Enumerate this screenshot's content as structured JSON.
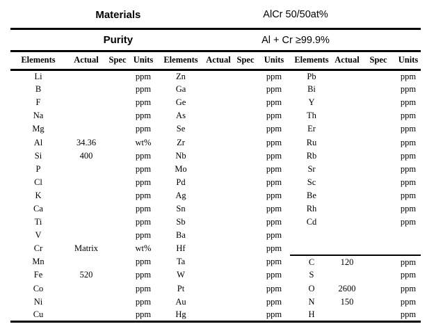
{
  "colors": {
    "background": "#ffffff",
    "text": "#000000",
    "rule": "#000000"
  },
  "title_rows": [
    {
      "label": "Materials",
      "value": "AlCr 50/50at%"
    },
    {
      "label": "Purity",
      "value": "Al + Cr ≥99.9%"
    }
  ],
  "columns": [
    "Elements",
    "Actual",
    "Spec",
    "Units"
  ],
  "groups": [
    {
      "rows": [
        {
          "element": "Li",
          "actual": "",
          "spec": "",
          "units": "ppm"
        },
        {
          "element": "B",
          "actual": "",
          "spec": "",
          "units": "ppm"
        },
        {
          "element": "F",
          "actual": "",
          "spec": "",
          "units": "ppm"
        },
        {
          "element": "Na",
          "actual": "",
          "spec": "",
          "units": "ppm"
        },
        {
          "element": "Mg",
          "actual": "",
          "spec": "",
          "units": "ppm"
        },
        {
          "element": "Al",
          "actual": "34.36",
          "spec": "",
          "units": "wt%"
        },
        {
          "element": "Si",
          "actual": "400",
          "spec": "",
          "units": "ppm"
        },
        {
          "element": "P",
          "actual": "",
          "spec": "",
          "units": "ppm"
        },
        {
          "element": "Cl",
          "actual": "",
          "spec": "",
          "units": "ppm"
        },
        {
          "element": "K",
          "actual": "",
          "spec": "",
          "units": "ppm"
        },
        {
          "element": "Ca",
          "actual": "",
          "spec": "",
          "units": "ppm"
        },
        {
          "element": "Ti",
          "actual": "",
          "spec": "",
          "units": "ppm"
        },
        {
          "element": "V",
          "actual": "",
          "spec": "",
          "units": "ppm"
        },
        {
          "element": "Cr",
          "actual": "Matrix",
          "spec": "",
          "units": "wt%"
        },
        {
          "element": "Mn",
          "actual": "",
          "spec": "",
          "units": "ppm"
        },
        {
          "element": "Fe",
          "actual": "520",
          "spec": "",
          "units": "ppm"
        },
        {
          "element": "Co",
          "actual": "",
          "spec": "",
          "units": "ppm"
        },
        {
          "element": "Ni",
          "actual": "",
          "spec": "",
          "units": "ppm"
        },
        {
          "element": "Cu",
          "actual": "",
          "spec": "",
          "units": "ppm"
        }
      ]
    },
    {
      "rows": [
        {
          "element": "Zn",
          "actual": "",
          "spec": "",
          "units": "ppm"
        },
        {
          "element": "Ga",
          "actual": "",
          "spec": "",
          "units": "ppm"
        },
        {
          "element": "Ge",
          "actual": "",
          "spec": "",
          "units": "ppm"
        },
        {
          "element": "As",
          "actual": "",
          "spec": "",
          "units": "ppm"
        },
        {
          "element": "Se",
          "actual": "",
          "spec": "",
          "units": "ppm"
        },
        {
          "element": "Zr",
          "actual": "",
          "spec": "",
          "units": "ppm"
        },
        {
          "element": "Nb",
          "actual": "",
          "spec": "",
          "units": "ppm"
        },
        {
          "element": "Mo",
          "actual": "",
          "spec": "",
          "units": "ppm"
        },
        {
          "element": "Pd",
          "actual": "",
          "spec": "",
          "units": "ppm"
        },
        {
          "element": "Ag",
          "actual": "",
          "spec": "",
          "units": "ppm"
        },
        {
          "element": "Sn",
          "actual": "",
          "spec": "",
          "units": "ppm"
        },
        {
          "element": "Sb",
          "actual": "",
          "spec": "",
          "units": "ppm"
        },
        {
          "element": "Ba",
          "actual": "",
          "spec": "",
          "units": "ppm"
        },
        {
          "element": "Hf",
          "actual": "",
          "spec": "",
          "units": "ppm"
        },
        {
          "element": "Ta",
          "actual": "",
          "spec": "",
          "units": "ppm"
        },
        {
          "element": "W",
          "actual": "",
          "spec": "",
          "units": "ppm"
        },
        {
          "element": "Pt",
          "actual": "",
          "spec": "",
          "units": "ppm"
        },
        {
          "element": "Au",
          "actual": "",
          "spec": "",
          "units": "ppm"
        },
        {
          "element": "Hg",
          "actual": "",
          "spec": "",
          "units": "ppm"
        }
      ]
    },
    {
      "rows": [
        {
          "element": "Pb",
          "actual": "",
          "spec": "",
          "units": "ppm"
        },
        {
          "element": "Bi",
          "actual": "",
          "spec": "",
          "units": "ppm"
        },
        {
          "element": "Y",
          "actual": "",
          "spec": "",
          "units": "ppm"
        },
        {
          "element": "Th",
          "actual": "",
          "spec": "",
          "units": "ppm"
        },
        {
          "element": "Er",
          "actual": "",
          "spec": "",
          "units": "ppm"
        },
        {
          "element": "Ru",
          "actual": "",
          "spec": "",
          "units": "ppm"
        },
        {
          "element": "Rb",
          "actual": "",
          "spec": "",
          "units": "ppm"
        },
        {
          "element": "Sr",
          "actual": "",
          "spec": "",
          "units": "ppm"
        },
        {
          "element": "Sc",
          "actual": "",
          "spec": "",
          "units": "ppm"
        },
        {
          "element": "Be",
          "actual": "",
          "spec": "",
          "units": "ppm"
        },
        {
          "element": "Rh",
          "actual": "",
          "spec": "",
          "units": "ppm"
        },
        {
          "element": "Cd",
          "actual": "",
          "spec": "",
          "units": "ppm"
        },
        {
          "element": "",
          "actual": "",
          "spec": "",
          "units": ""
        },
        {
          "element": "",
          "actual": "",
          "spec": "",
          "units": ""
        },
        {
          "element": "C",
          "actual": "120",
          "spec": "",
          "units": "ppm",
          "separator_above": true
        },
        {
          "element": "S",
          "actual": "",
          "spec": "",
          "units": "ppm"
        },
        {
          "element": "O",
          "actual": "2600",
          "spec": "",
          "units": "ppm"
        },
        {
          "element": "N",
          "actual": "150",
          "spec": "",
          "units": "ppm"
        },
        {
          "element": "H",
          "actual": "",
          "spec": "",
          "units": "ppm"
        }
      ]
    }
  ]
}
